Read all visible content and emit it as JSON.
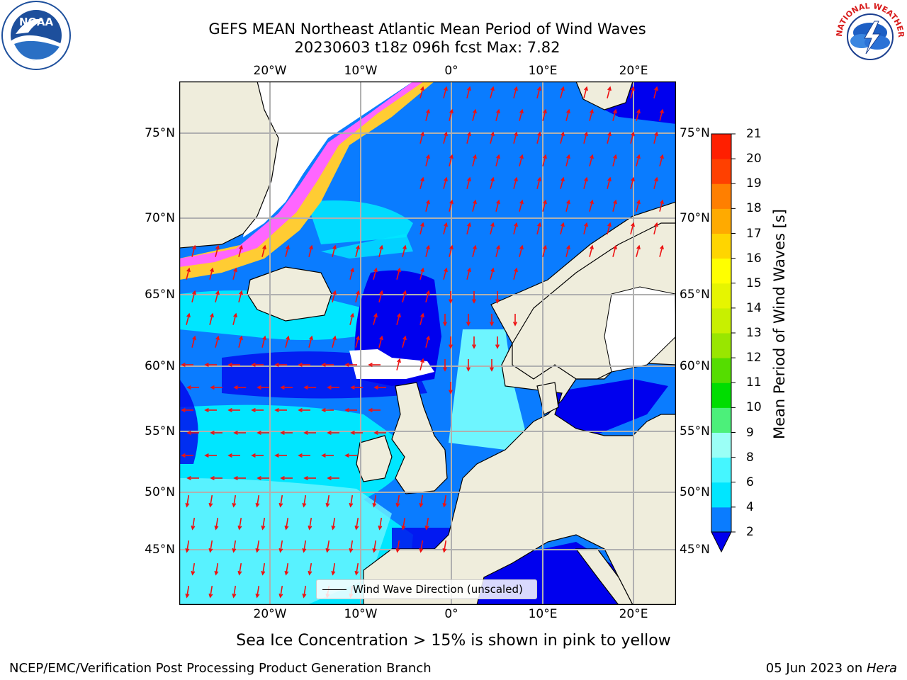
{
  "title": {
    "line1": "GEFS MEAN Northeast Atlantic Mean Period of Wind Waves",
    "line2": "20230603 t18z 096h fcst   Max: 7.82"
  },
  "axes": {
    "lon_ticks_top": [
      "20°W",
      "10°W",
      "0°",
      "10°E",
      "20°E"
    ],
    "lon_ticks_bottom": [
      "20°W",
      "10°W",
      "0°",
      "10°E",
      "20°E"
    ],
    "lat_ticks_left": [
      "75°N",
      "70°N",
      "65°N",
      "60°N",
      "55°N",
      "50°N",
      "45°N"
    ],
    "lat_ticks_right": [
      "75°N",
      "70°N",
      "65°N",
      "60°N",
      "55°N",
      "50°N",
      "45°N"
    ]
  },
  "colorbar": {
    "label": "Mean Period of Wind Waves [s]",
    "ticks": [
      "2",
      "4",
      "6",
      "8",
      "9",
      "10",
      "11",
      "12",
      "13",
      "14",
      "15",
      "16",
      "17",
      "18",
      "19",
      "20",
      "21"
    ],
    "colors": [
      "#0a7cff",
      "#00e6ff",
      "#45f6ff",
      "#9bfff6",
      "#4cf07a",
      "#00dd00",
      "#55dd00",
      "#99e600",
      "#c8f000",
      "#e6f500",
      "#ffff00",
      "#ffd500",
      "#ffaa00",
      "#ff7f00",
      "#ff4000",
      "#ff1f00",
      "#ff0000"
    ],
    "under_color": "#0000ee"
  },
  "map_colors": {
    "land": "#efeddc",
    "sea_ice": "#ffffff",
    "ice_edge": [
      "#ff66ff",
      "#ffb0c8",
      "#ffcc33",
      "#ffee66"
    ],
    "wave_dark": "#0000ee",
    "wave_mid": "#0a7cff",
    "wave_light": "#00e6ff",
    "wave_pale": "#6ef5ff",
    "arrow": "#ee1111",
    "grid": "#b0b0b0"
  },
  "legend": {
    "label": "Wind Wave Direction (unscaled)"
  },
  "caption": "Sea Ice Concentration > 15% is shown in pink to yellow",
  "footer": {
    "left": "NCEP/EMC/Verification Post Processing Product Generation Branch",
    "right_date": "05 Jun 2023 on ",
    "right_host": "Hera"
  },
  "logos": {
    "left": "NOAA",
    "right": "NATIONAL WEATHER SERVICE"
  }
}
